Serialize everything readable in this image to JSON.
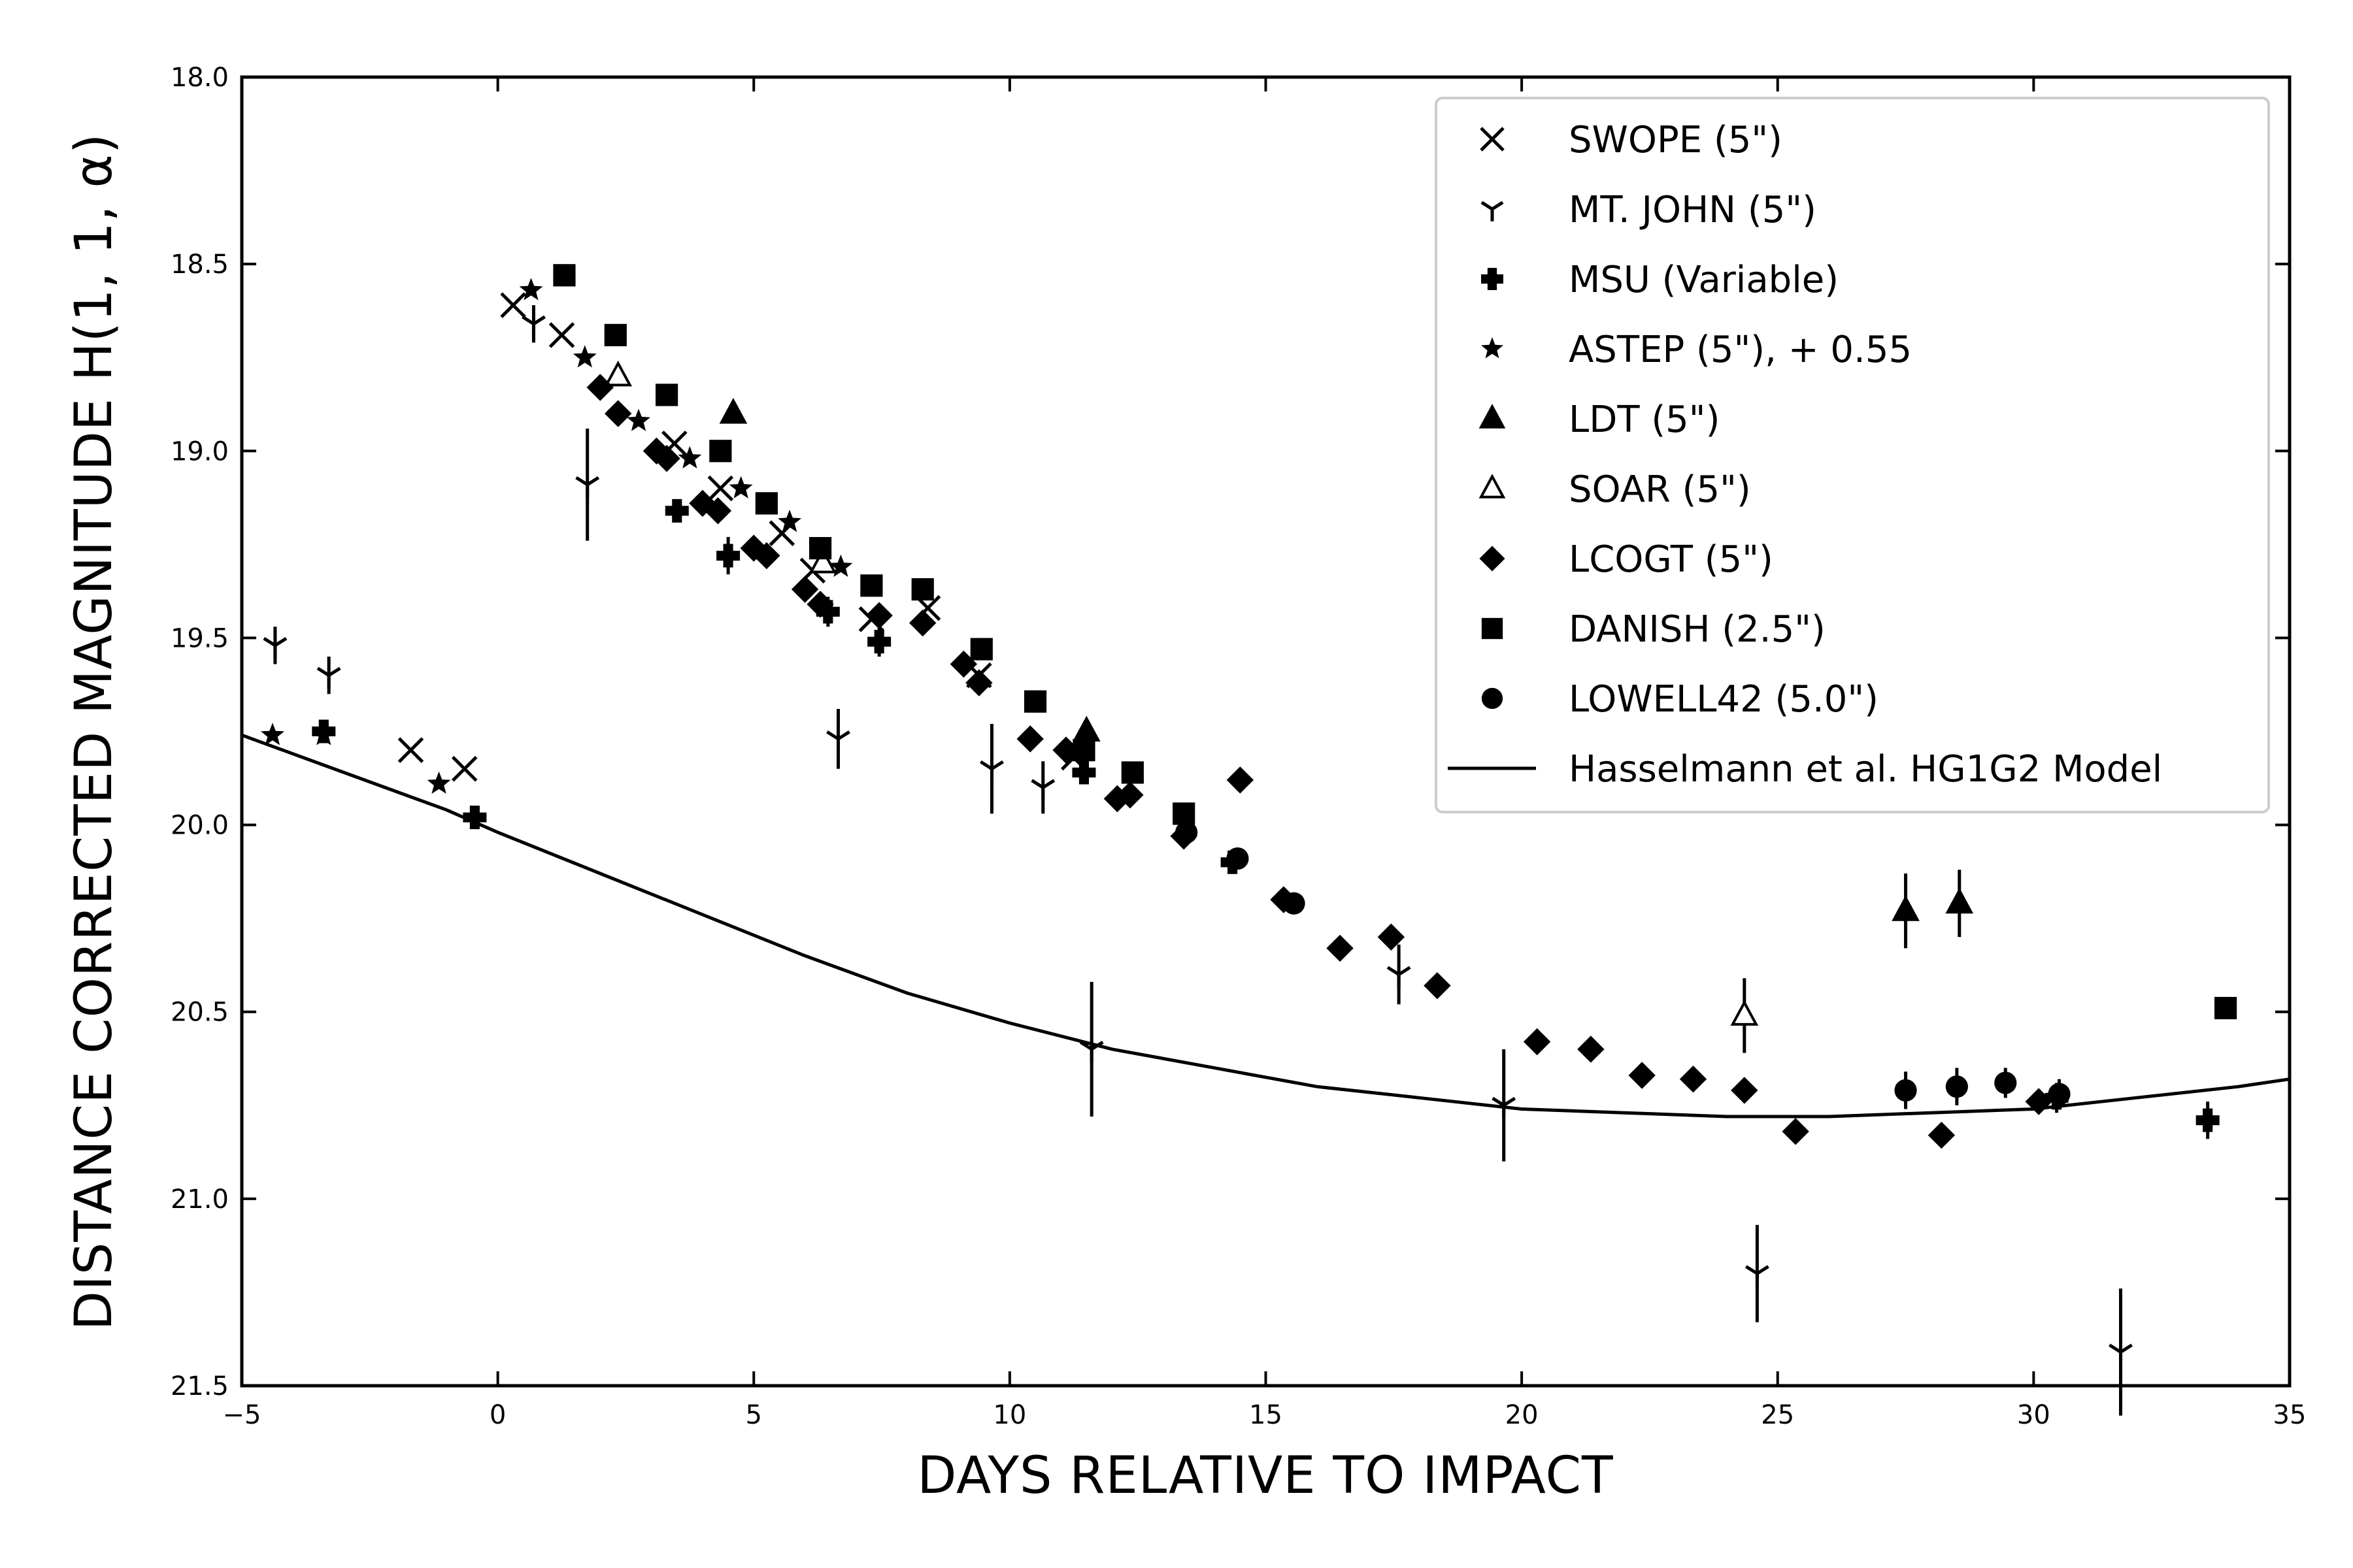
{
  "chart_data": {
    "type": "scatter",
    "title": "",
    "xlabel": "DAYS RELATIVE TO IMPACT",
    "ylabel": "DISTANCE CORRECTED MAGNITUDE H(1, 1, α)",
    "xlim": [
      -5,
      35
    ],
    "ylim": [
      21.5,
      18.0
    ],
    "y_inverted": true,
    "x_ticks": [
      -5,
      0,
      5,
      10,
      15,
      20,
      25,
      30,
      35
    ],
    "x_tick_labels": [
      "−5",
      "0",
      "5",
      "10",
      "15",
      "20",
      "25",
      "30",
      "35"
    ],
    "y_ticks": [
      18.0,
      18.5,
      19.0,
      19.5,
      20.0,
      20.5,
      21.0,
      21.5
    ],
    "y_tick_labels": [
      "18.0",
      "18.5",
      "19.0",
      "19.5",
      "20.0",
      "20.5",
      "21.0",
      "21.5"
    ],
    "grid": false,
    "legend_position": "top-right",
    "series": [
      {
        "name": "SWOPE (5\")",
        "marker": "x",
        "filled": false,
        "points": [
          [
            0.3,
            18.61,
            0
          ],
          [
            1.25,
            18.69,
            0
          ],
          [
            -1.7,
            19.8,
            0
          ],
          [
            -0.65,
            19.85,
            0
          ],
          [
            3.45,
            18.98,
            0
          ],
          [
            4.35,
            19.1,
            0
          ],
          [
            5.55,
            19.22,
            0
          ],
          [
            6.15,
            19.32,
            0
          ],
          [
            7.3,
            19.45,
            0
          ],
          [
            8.4,
            19.42,
            0
          ],
          [
            9.4,
            19.6,
            0
          ],
          [
            11.25,
            19.82,
            0
          ]
        ]
      },
      {
        "name": "MT. JOHN (5\")",
        "marker": "tri_down",
        "filled": false,
        "points": [
          [
            -4.35,
            19.52,
            0.05
          ],
          [
            -3.3,
            19.6,
            0.05
          ],
          [
            0.7,
            18.66,
            0.05
          ],
          [
            1.75,
            19.09,
            0.15
          ],
          [
            6.65,
            19.77,
            0.08
          ],
          [
            9.65,
            19.85,
            0.12
          ],
          [
            10.65,
            19.9,
            0.07
          ],
          [
            11.6,
            20.6,
            0.18
          ],
          [
            17.6,
            20.4,
            0.08
          ],
          [
            19.65,
            20.75,
            0.15
          ],
          [
            24.6,
            21.2,
            0.13
          ],
          [
            31.7,
            21.41,
            0.17
          ]
        ]
      },
      {
        "name": "MSU (Variable)",
        "marker": "plus",
        "filled": true,
        "points": [
          [
            -3.4,
            19.75,
            0.03
          ],
          [
            -0.45,
            19.98,
            0.03
          ],
          [
            3.5,
            19.16,
            0.03
          ],
          [
            4.5,
            19.28,
            0.05
          ],
          [
            6.45,
            19.43,
            0.04
          ],
          [
            7.45,
            19.51,
            0.04
          ],
          [
            11.45,
            19.86,
            0.03
          ],
          [
            14.35,
            20.1,
            0.03
          ],
          [
            30.45,
            20.73,
            0.04
          ],
          [
            33.4,
            20.79,
            0.05
          ]
        ]
      },
      {
        "name": "ASTEP (5\"), + 0.55",
        "marker": "star",
        "filled": true,
        "points": [
          [
            -4.4,
            19.76,
            0
          ],
          [
            -3.4,
            19.76,
            0
          ],
          [
            -1.15,
            19.89,
            0
          ],
          [
            0.65,
            18.57,
            0
          ],
          [
            1.7,
            18.75,
            0
          ],
          [
            2.75,
            18.92,
            0
          ],
          [
            3.75,
            19.02,
            0
          ],
          [
            4.75,
            19.1,
            0
          ],
          [
            5.7,
            19.19,
            0
          ],
          [
            6.7,
            19.31,
            0
          ]
        ]
      },
      {
        "name": "LDT (5\")",
        "marker": "triangle",
        "filled": true,
        "points": [
          [
            4.6,
            18.9,
            0
          ],
          [
            11.5,
            19.75,
            0
          ],
          [
            27.5,
            20.23,
            0.1
          ],
          [
            28.55,
            20.21,
            0.09
          ]
        ]
      },
      {
        "name": "SOAR (5\")",
        "marker": "triangle",
        "filled": false,
        "points": [
          [
            2.35,
            18.8,
            0
          ],
          [
            6.35,
            19.3,
            0
          ],
          [
            24.35,
            20.51,
            0.1
          ]
        ]
      },
      {
        "name": "LCOGT (5\")",
        "marker": "diamond",
        "filled": true,
        "points": [
          [
            2.0,
            18.83,
            0
          ],
          [
            2.35,
            18.9,
            0
          ],
          [
            3.1,
            19.0,
            0
          ],
          [
            3.3,
            19.02,
            0
          ],
          [
            4.0,
            19.14,
            0
          ],
          [
            4.3,
            19.16,
            0
          ],
          [
            5.0,
            19.26,
            0
          ],
          [
            5.25,
            19.28,
            0
          ],
          [
            6.0,
            19.37,
            0
          ],
          [
            6.3,
            19.41,
            0
          ],
          [
            7.45,
            19.44,
            0
          ],
          [
            8.3,
            19.46,
            0
          ],
          [
            9.1,
            19.57,
            0
          ],
          [
            9.4,
            19.62,
            0
          ],
          [
            10.4,
            19.77,
            0
          ],
          [
            11.1,
            19.8,
            0
          ],
          [
            12.1,
            19.93,
            0
          ],
          [
            12.35,
            19.92,
            0
          ],
          [
            13.4,
            20.03,
            0
          ],
          [
            14.5,
            19.88,
            0
          ],
          [
            15.35,
            20.2,
            0
          ],
          [
            16.45,
            20.33,
            0
          ],
          [
            17.45,
            20.3,
            0
          ],
          [
            18.35,
            20.43,
            0
          ],
          [
            20.3,
            20.58,
            0
          ],
          [
            21.35,
            20.6,
            0
          ],
          [
            22.35,
            20.67,
            0
          ],
          [
            23.35,
            20.68,
            0
          ],
          [
            24.35,
            20.71,
            0
          ],
          [
            25.35,
            20.82,
            0
          ],
          [
            28.2,
            20.83,
            0
          ],
          [
            30.1,
            20.74,
            0
          ]
        ]
      },
      {
        "name": "DANISH (2.5\")",
        "marker": "square",
        "filled": true,
        "points": [
          [
            1.3,
            18.53,
            0
          ],
          [
            2.3,
            18.69,
            0
          ],
          [
            3.3,
            18.85,
            0
          ],
          [
            4.35,
            19.0,
            0
          ],
          [
            5.25,
            19.14,
            0
          ],
          [
            6.3,
            19.26,
            0
          ],
          [
            7.3,
            19.36,
            0
          ],
          [
            8.3,
            19.37,
            0
          ],
          [
            9.45,
            19.53,
            0
          ],
          [
            10.5,
            19.67,
            0
          ],
          [
            11.45,
            19.8,
            0
          ],
          [
            12.4,
            19.86,
            0
          ],
          [
            13.4,
            19.97,
            0
          ],
          [
            33.75,
            20.49,
            0
          ]
        ]
      },
      {
        "name": "LOWELL42 (5.0\")",
        "marker": "circle",
        "filled": true,
        "points": [
          [
            13.45,
            20.02,
            0
          ],
          [
            14.45,
            20.09,
            0
          ],
          [
            15.55,
            20.21,
            0
          ],
          [
            27.5,
            20.71,
            0.05
          ],
          [
            28.5,
            20.7,
            0.05
          ],
          [
            29.45,
            20.69,
            0.04
          ],
          [
            30.5,
            20.72,
            0.04
          ]
        ]
      }
    ],
    "model_line": {
      "name": "Hasselmann et al. HG1G2 Model",
      "x": [
        -5,
        -3,
        -1,
        0,
        2,
        4,
        6,
        8,
        10,
        12,
        14,
        16,
        18,
        20,
        22,
        24,
        25,
        26,
        28,
        30,
        32,
        34,
        35
      ],
      "y": [
        19.76,
        19.86,
        19.96,
        20.02,
        20.13,
        20.24,
        20.35,
        20.45,
        20.53,
        20.6,
        20.65,
        20.7,
        20.73,
        20.76,
        20.77,
        20.78,
        20.78,
        20.78,
        20.77,
        20.76,
        20.73,
        20.7,
        20.68
      ]
    }
  }
}
